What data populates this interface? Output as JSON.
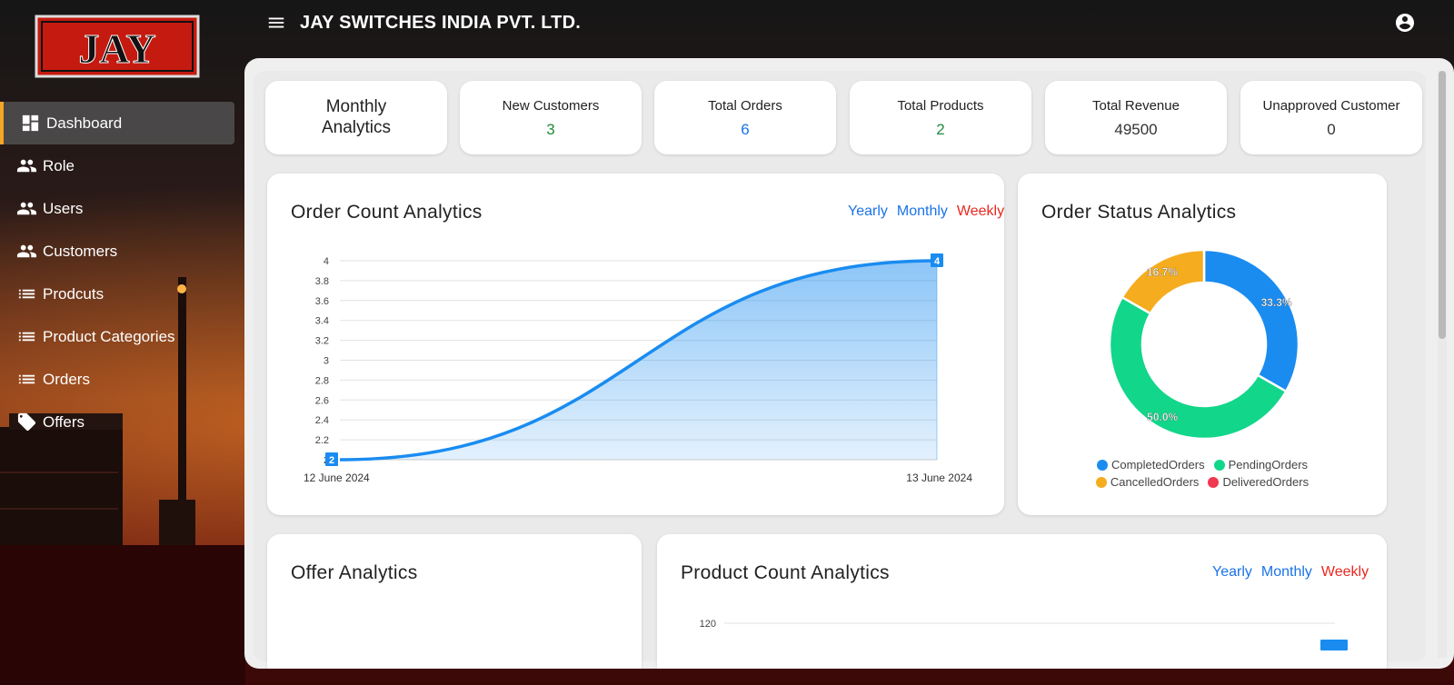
{
  "app": {
    "title": "JAY SWITCHES INDIA PVT. LTD.",
    "logo_text": "Jay"
  },
  "sidebar": {
    "items": [
      {
        "label": "Dashboard",
        "icon": "dashboard-icon",
        "active": true
      },
      {
        "label": "Role",
        "icon": "people-icon"
      },
      {
        "label": "Users",
        "icon": "people-icon"
      },
      {
        "label": "Customers",
        "icon": "people-icon"
      },
      {
        "label": "Prodcuts",
        "icon": "list-icon"
      },
      {
        "label": "Product Categories",
        "icon": "list-icon"
      },
      {
        "label": "Orders",
        "icon": "list-icon"
      },
      {
        "label": "Offers",
        "icon": "tag-icon"
      }
    ]
  },
  "stats": {
    "title_line1": "Monthly",
    "title_line2": "Analytics",
    "new_customers": {
      "label": "New Customers",
      "value": "3"
    },
    "total_orders": {
      "label": "Total Orders",
      "value": "6"
    },
    "total_products": {
      "label": "Total Products",
      "value": "2"
    },
    "total_revenue": {
      "label": "Total Revenue",
      "value": "49500"
    },
    "unapproved_customer": {
      "label": "Unapproved Customer",
      "value": "0"
    }
  },
  "filters": {
    "yearly": "Yearly",
    "monthly": "Monthly",
    "weekly": "Weekly"
  },
  "order_count": {
    "title": "Order Count Analytics"
  },
  "order_status": {
    "title": "Order Status Analytics"
  },
  "offer": {
    "title": "Offer Analytics"
  },
  "product_count": {
    "title": "Product Count Analytics"
  },
  "colors": {
    "accent": "#1a8cf0",
    "completed": "#1a8cf0",
    "pending": "#12d68a",
    "cancelled": "#f5ac1e",
    "delivered": "#f0384f",
    "active_border": "#f5a623"
  },
  "chart_data": [
    {
      "type": "area",
      "title": "Order Count Analytics",
      "x": [
        "12 June 2024",
        "13 June 2024"
      ],
      "series": [
        {
          "values": [
            2,
            4
          ]
        }
      ],
      "yticks": [
        "4",
        "3.8",
        "3.6",
        "3.4",
        "3.2",
        "3",
        "2.8",
        "2.6",
        "2.4",
        "2.2",
        "2"
      ],
      "ylim": [
        2,
        4
      ],
      "data_labels": [
        "2",
        "4"
      ],
      "grid": true
    },
    {
      "type": "pie",
      "title": "Order Status Analytics",
      "donut": true,
      "slices": [
        {
          "name": "CompletedOrders",
          "value": 33.3,
          "label": "33.3%"
        },
        {
          "name": "PendingOrders",
          "value": 50.0,
          "label": "50.0%"
        },
        {
          "name": "CancelledOrders",
          "value": 16.7,
          "label": "16.7%"
        },
        {
          "name": "DeliveredOrders",
          "value": 0
        }
      ],
      "legend": "bottom"
    },
    {
      "type": "bar",
      "title": "Product Count Analytics",
      "yticks": [
        "120"
      ],
      "grid": true
    }
  ]
}
